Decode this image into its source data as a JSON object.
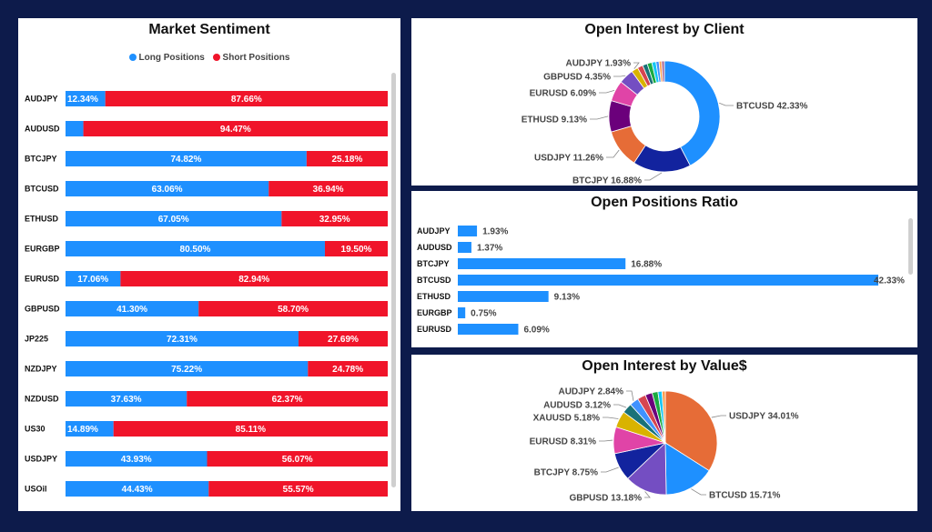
{
  "colors": {
    "long": "#1e90ff",
    "short": "#f0142a",
    "bar": "#1e90ff"
  },
  "chart_data": [
    {
      "type": "bar",
      "id": "market-sentiment",
      "title": "Market Sentiment",
      "orientation": "horizontal",
      "stacked": true,
      "legend_placement": "top",
      "categories": [
        "AUDJPY",
        "AUDUSD",
        "BTCJPY",
        "BTCUSD",
        "ETHUSD",
        "EURGBP",
        "EURUSD",
        "GBPUSD",
        "JP225",
        "NZDJPY",
        "NZDUSD",
        "US30",
        "USDJPY",
        "USOil"
      ],
      "series": [
        {
          "name": "Long Positions",
          "values": [
            12.34,
            5.53,
            74.82,
            63.06,
            67.05,
            80.5,
            17.06,
            41.3,
            72.31,
            75.22,
            37.63,
            14.89,
            43.93,
            44.43
          ],
          "labels": [
            "12.34%",
            "",
            "74.82%",
            "63.06%",
            "67.05%",
            "80.50%",
            "17.06%",
            "41.30%",
            "72.31%",
            "75.22%",
            "37.63%",
            "14.89%",
            "43.93%",
            "44.43%"
          ]
        },
        {
          "name": "Short Positions",
          "values": [
            87.66,
            94.47,
            25.18,
            36.94,
            32.95,
            19.5,
            82.94,
            58.7,
            27.69,
            24.78,
            62.37,
            85.11,
            56.07,
            55.57
          ],
          "labels": [
            "87.66%",
            "94.47%",
            "25.18%",
            "36.94%",
            "32.95%",
            "19.50%",
            "82.94%",
            "58.70%",
            "27.69%",
            "24.78%",
            "62.37%",
            "85.11%",
            "56.07%",
            "55.57%"
          ]
        }
      ]
    },
    {
      "type": "pie",
      "id": "open-interest-client",
      "title": "Open Interest by Client",
      "donut": true,
      "slices": [
        {
          "label": "BTCUSD",
          "value": 42.33,
          "text": "BTCUSD 42.33%",
          "color": "#1e90ff"
        },
        {
          "label": "BTCJPY",
          "value": 16.88,
          "text": "BTCJPY 16.88%",
          "color": "#12239e"
        },
        {
          "label": "USDJPY",
          "value": 11.26,
          "text": "USDJPY 11.26%",
          "color": "#e66c37"
        },
        {
          "label": "ETHUSD",
          "value": 9.13,
          "text": "ETHUSD 9.13%",
          "color": "#6b007b"
        },
        {
          "label": "EURUSD",
          "value": 6.09,
          "text": "EURUSD 6.09%",
          "color": "#e044a7"
        },
        {
          "label": "GBPUSD",
          "value": 4.35,
          "text": "GBPUSD 4.35%",
          "color": "#744ec2"
        },
        {
          "label": "AUDJPY",
          "value": 1.93,
          "text": "AUDJPY 1.93%",
          "color": "#d9b300"
        },
        {
          "label": "",
          "value": 1.6,
          "text": "",
          "color": "#d64550"
        },
        {
          "label": "",
          "value": 1.4,
          "text": "",
          "color": "#197278"
        },
        {
          "label": "",
          "value": 1.37,
          "text": "",
          "color": "#1aab40"
        },
        {
          "label": "",
          "value": 1.2,
          "text": "",
          "color": "#15c6f4"
        },
        {
          "label": "",
          "value": 0.9,
          "text": "",
          "color": "#4092ff"
        },
        {
          "label": "",
          "value": 0.75,
          "text": "",
          "color": "#ff9d4d"
        },
        {
          "label": "",
          "value": 0.81,
          "text": "",
          "color": "#a66999"
        }
      ]
    },
    {
      "type": "bar",
      "id": "open-positions-ratio",
      "title": "Open Positions Ratio",
      "orientation": "horizontal",
      "categories": [
        "AUDJPY",
        "AUDUSD",
        "BTCJPY",
        "BTCUSD",
        "ETHUSD",
        "EURGBP",
        "EURUSD"
      ],
      "values": [
        1.93,
        1.37,
        16.88,
        42.33,
        9.13,
        0.75,
        6.09
      ],
      "labels": [
        "1.93%",
        "1.37%",
        "16.88%",
        "42.33%",
        "9.13%",
        "0.75%",
        "6.09%"
      ],
      "xlim": [
        0,
        42.33
      ]
    },
    {
      "type": "pie",
      "id": "open-interest-value",
      "title": "Open Interest by Value$",
      "donut": false,
      "slices": [
        {
          "label": "USDJPY",
          "value": 34.01,
          "text": "USDJPY 34.01%",
          "color": "#e66c37"
        },
        {
          "label": "BTCUSD",
          "value": 15.71,
          "text": "BTCUSD 15.71%",
          "color": "#1e90ff"
        },
        {
          "label": "GBPUSD",
          "value": 13.18,
          "text": "GBPUSD 13.18%",
          "color": "#744ec2"
        },
        {
          "label": "BTCJPY",
          "value": 8.75,
          "text": "BTCJPY 8.75%",
          "color": "#12239e"
        },
        {
          "label": "EURUSD",
          "value": 8.31,
          "text": "EURUSD 8.31%",
          "color": "#e044a7"
        },
        {
          "label": "XAUUSD",
          "value": 5.18,
          "text": "XAUUSD 5.18%",
          "color": "#d9b300"
        },
        {
          "label": "AUDUSD",
          "value": 3.12,
          "text": "AUDUSD 3.12%",
          "color": "#197278"
        },
        {
          "label": "AUDJPY",
          "value": 2.84,
          "text": "AUDJPY 2.84%",
          "color": "#4092ff"
        },
        {
          "label": "",
          "value": 2.6,
          "text": "",
          "color": "#d64550"
        },
        {
          "label": "",
          "value": 2.2,
          "text": "",
          "color": "#6b007b"
        },
        {
          "label": "",
          "value": 1.8,
          "text": "",
          "color": "#1aab40"
        },
        {
          "label": "",
          "value": 1.3,
          "text": "",
          "color": "#15c6f4"
        },
        {
          "label": "",
          "value": 1.0,
          "text": "",
          "color": "#ff9d4d"
        }
      ]
    }
  ]
}
